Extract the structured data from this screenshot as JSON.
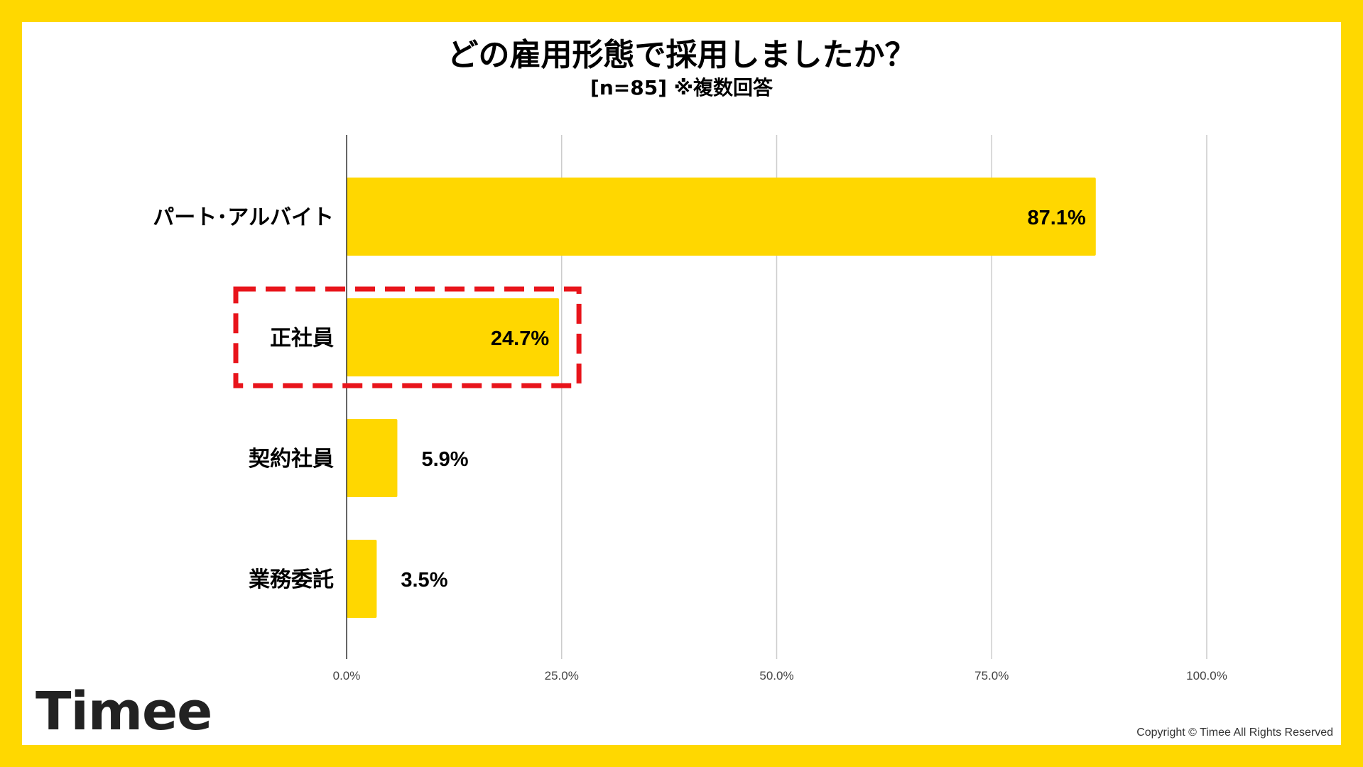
{
  "header": {
    "title": "どの雇用形態で採用しましたか？",
    "subtitle": "[n=85]  ※複数回答"
  },
  "chart_data": {
    "type": "bar",
    "orientation": "horizontal",
    "categories": [
      "パート･アルバイト",
      "正社員",
      "契約社員",
      "業務委託"
    ],
    "values": [
      87.1,
      24.7,
      5.9,
      3.5
    ],
    "value_labels": [
      "87.1%",
      "24.7%",
      "5.9%",
      "3.5%"
    ],
    "xlim": [
      0,
      100
    ],
    "ticks": [
      0,
      25,
      50,
      75,
      100
    ],
    "tick_labels": [
      "0.0%",
      "25.0%",
      "50.0%",
      "75.0%",
      "100.0%"
    ],
    "grid": true,
    "highlighted_category": "正社員",
    "colors": {
      "bar": "#FFD700",
      "highlight_border": "#E8141B",
      "grid": "#CCCCCC",
      "axis": "#333333"
    }
  },
  "footer": {
    "logo": "Timee",
    "copyright": "Copyright © Timee All Rights Reserved"
  },
  "colors": {
    "frame": "#FFD800",
    "background": "#FFFFFF"
  }
}
